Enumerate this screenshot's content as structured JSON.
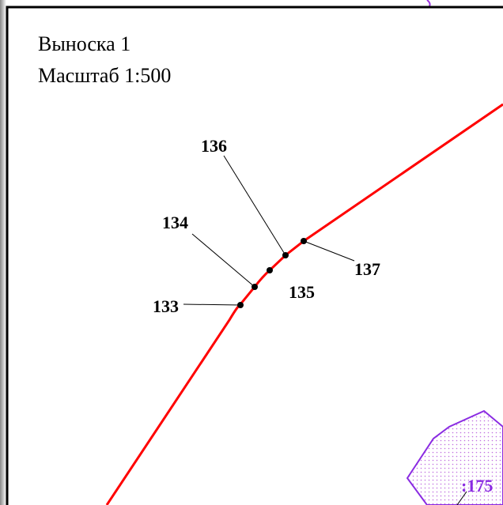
{
  "callout": {
    "title": "Выноска 1",
    "scale": "Масштаб 1:500"
  },
  "points": [
    {
      "label": "133"
    },
    {
      "label": "134"
    },
    {
      "label": "135"
    },
    {
      "label": "136"
    },
    {
      "label": "137"
    }
  ],
  "parcel": {
    "label": ":175"
  }
}
